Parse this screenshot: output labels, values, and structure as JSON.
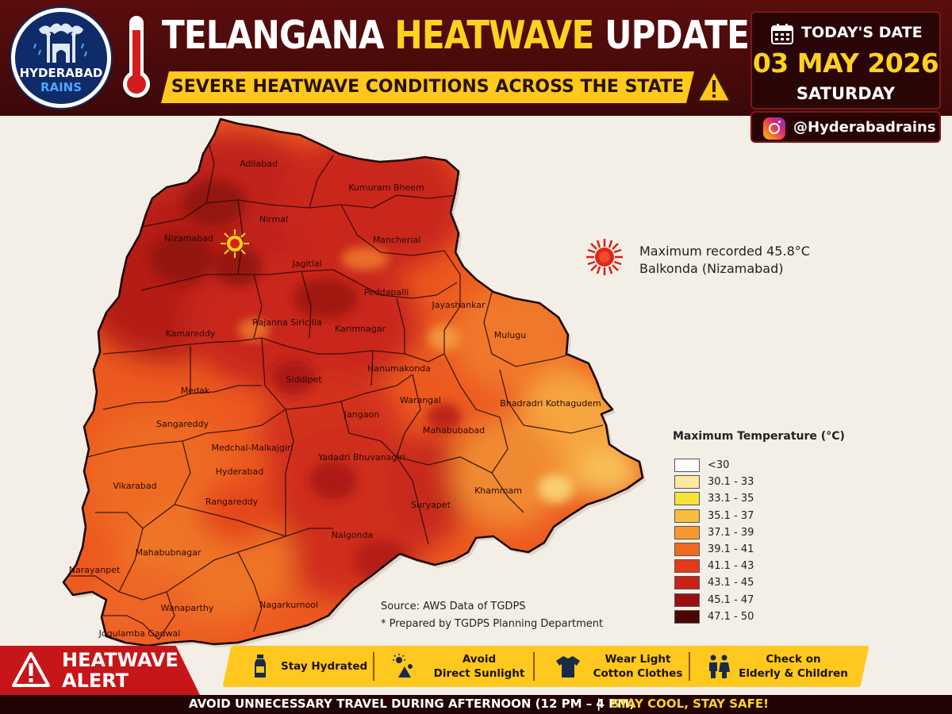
{
  "header": {
    "logo_line1": "HYDERABAD",
    "logo_line2": "RAINS",
    "title_part1": "TELANGANA ",
    "title_highlight": "HEATWAVE",
    "title_part2": " UPDATE",
    "subtitle": "SEVERE HEATWAVE CONDITIONS ACROSS THE STATE"
  },
  "datebox": {
    "label": "TODAY'S DATE",
    "date": "03 MAY 2026",
    "day": "SATURDAY",
    "handle": "@Hyderabadrains"
  },
  "map": {
    "districts": [
      "Adilabad",
      "Kumuram Bheem",
      "Nirmal",
      "Mancherial",
      "Nizamabad",
      "Jagitial",
      "Peddapalli",
      "Jayashankar",
      "Kamareddy",
      "Rajanna Siricilla",
      "Karimnagar",
      "Mulugu",
      "Hanumakonda",
      "Medak",
      "Siddipet",
      "Warangal",
      "Bhadradri Kothagudem",
      "Jangaon",
      "Sangareddy",
      "Mahabubabad",
      "Medchal-Malkajgiri",
      "Yadadri Bhuvanagiri",
      "Hyderabad",
      "Vikarabad",
      "Rangareddy",
      "Suryapet",
      "Khammam",
      "Nalgonda",
      "Mahabubnagar",
      "Narayanpet",
      "Wanaparthy",
      "Nagarkurnool",
      "Jogulamba Gadwal"
    ],
    "max_recorded_line1": "Maximum recorded 45.8°C",
    "max_recorded_line2": "Balkonda (Nizamabad)",
    "source_line1": "Source: AWS Data of TGDPS",
    "source_line2": "* Prepared by TGDPS Planning Department"
  },
  "legend": {
    "title": "Maximum Temperature (°C)",
    "items": [
      {
        "label": "<30",
        "color": "#ffffff"
      },
      {
        "label": "30.1 - 33",
        "color": "#fbe9a0"
      },
      {
        "label": "33.1 - 35",
        "color": "#f9e23a"
      },
      {
        "label": "35.1 - 37",
        "color": "#f9bd3d"
      },
      {
        "label": "37.1 - 39",
        "color": "#f8972c"
      },
      {
        "label": "39.1 - 41",
        "color": "#f06a22"
      },
      {
        "label": "41.1 - 43",
        "color": "#e33a1c"
      },
      {
        "label": "43.1 - 45",
        "color": "#cc1f16"
      },
      {
        "label": "45.1 - 47",
        "color": "#9a1010"
      },
      {
        "label": "47.1 - 50",
        "color": "#4a0606"
      }
    ]
  },
  "alert": {
    "line1": "HEATWAVE",
    "line2": "ALERT"
  },
  "tips": [
    {
      "icon": "water-bottle-icon",
      "line1": "Stay Hydrated",
      "line2": ""
    },
    {
      "icon": "sun-umbrella-icon",
      "line1": "Avoid",
      "line2": "Direct Sunlight"
    },
    {
      "icon": "tshirt-icon",
      "line1": "Wear Light",
      "line2": "Cotton Clothes"
    },
    {
      "icon": "family-icon",
      "line1": "Check on",
      "line2": "Elderly & Children"
    }
  ],
  "footer": {
    "left": "AVOID UNNECESSARY TRAVEL DURING AFTERNOON (12 PM – 4 PM)",
    "separator": "|",
    "right": "STAY COOL, STAY SAFE!"
  }
}
